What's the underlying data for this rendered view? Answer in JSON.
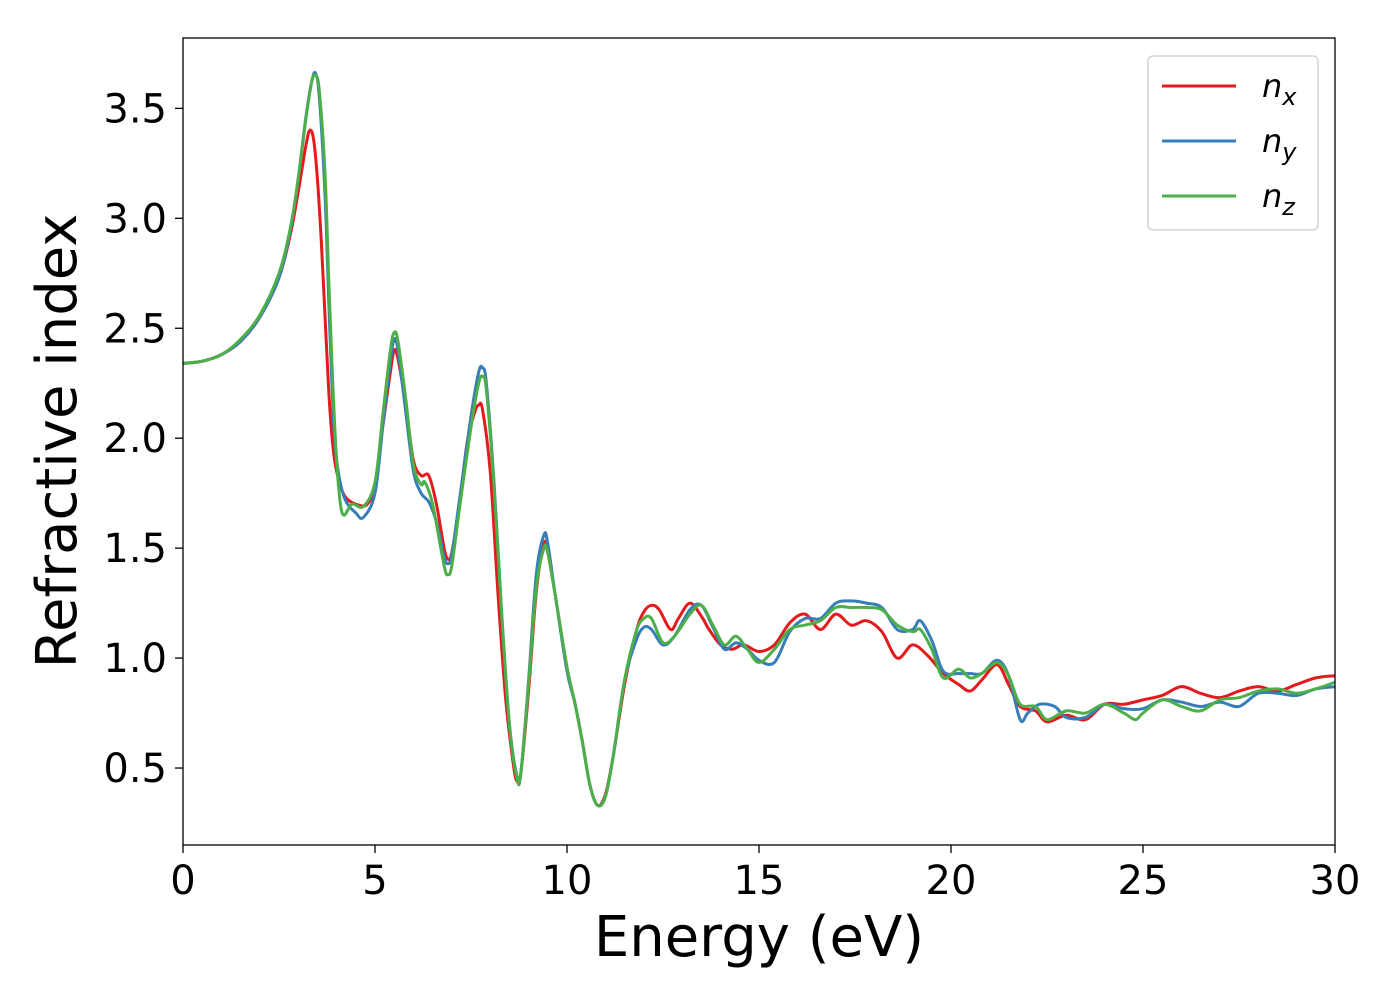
{
  "chart_data": {
    "type": "line",
    "title": "",
    "xlabel": "Energy (eV)",
    "ylabel": "Refractive index",
    "xlim": [
      0,
      30
    ],
    "ylim": [
      0.15,
      3.82
    ],
    "xticks": [
      0,
      5,
      10,
      15,
      20,
      25,
      30
    ],
    "yticks": [
      0.5,
      1.0,
      1.5,
      2.0,
      2.5,
      3.0,
      3.5
    ],
    "xtick_labels": [
      "0",
      "5",
      "10",
      "15",
      "20",
      "25",
      "30"
    ],
    "ytick_labels": [
      "0.5",
      "1.0",
      "1.5",
      "2.0",
      "2.5",
      "3.0",
      "3.5"
    ],
    "grid": false,
    "legend_position": "top-right",
    "series": [
      {
        "name": "n_x",
        "legend_base": "n",
        "legend_sub": "x",
        "color": "#e41a1c",
        "points": [
          [
            0,
            2.34
          ],
          [
            0.5,
            2.35
          ],
          [
            1,
            2.38
          ],
          [
            1.5,
            2.44
          ],
          [
            2,
            2.55
          ],
          [
            2.5,
            2.73
          ],
          [
            2.8,
            2.93
          ],
          [
            3.0,
            3.12
          ],
          [
            3.2,
            3.33
          ],
          [
            3.3,
            3.4
          ],
          [
            3.4,
            3.36
          ],
          [
            3.5,
            3.18
          ],
          [
            3.6,
            2.9
          ],
          [
            3.7,
            2.55
          ],
          [
            3.8,
            2.2
          ],
          [
            3.9,
            1.97
          ],
          [
            4.0,
            1.85
          ],
          [
            4.2,
            1.74
          ],
          [
            4.5,
            1.7
          ],
          [
            4.8,
            1.7
          ],
          [
            5.0,
            1.79
          ],
          [
            5.2,
            2.05
          ],
          [
            5.4,
            2.3
          ],
          [
            5.5,
            2.4
          ],
          [
            5.6,
            2.36
          ],
          [
            5.8,
            2.15
          ],
          [
            6.0,
            1.9
          ],
          [
            6.2,
            1.83
          ],
          [
            6.4,
            1.83
          ],
          [
            6.6,
            1.7
          ],
          [
            6.8,
            1.5
          ],
          [
            6.9,
            1.45
          ],
          [
            7.0,
            1.48
          ],
          [
            7.2,
            1.7
          ],
          [
            7.4,
            1.98
          ],
          [
            7.6,
            2.12
          ],
          [
            7.7,
            2.15
          ],
          [
            7.8,
            2.13
          ],
          [
            8.0,
            1.85
          ],
          [
            8.2,
            1.3
          ],
          [
            8.4,
            0.82
          ],
          [
            8.6,
            0.52
          ],
          [
            8.7,
            0.44
          ],
          [
            8.8,
            0.48
          ],
          [
            9.0,
            0.85
          ],
          [
            9.2,
            1.3
          ],
          [
            9.4,
            1.52
          ],
          [
            9.5,
            1.48
          ],
          [
            9.7,
            1.28
          ],
          [
            10.0,
            0.95
          ],
          [
            10.2,
            0.8
          ],
          [
            10.4,
            0.62
          ],
          [
            10.6,
            0.42
          ],
          [
            10.8,
            0.33
          ],
          [
            11.0,
            0.38
          ],
          [
            11.2,
            0.55
          ],
          [
            11.5,
            0.88
          ],
          [
            11.8,
            1.12
          ],
          [
            12.0,
            1.21
          ],
          [
            12.2,
            1.24
          ],
          [
            12.4,
            1.22
          ],
          [
            12.7,
            1.13
          ],
          [
            12.9,
            1.18
          ],
          [
            13.2,
            1.25
          ],
          [
            13.5,
            1.19
          ],
          [
            13.7,
            1.13
          ],
          [
            14.0,
            1.06
          ],
          [
            14.3,
            1.04
          ],
          [
            14.6,
            1.06
          ],
          [
            15.0,
            1.03
          ],
          [
            15.4,
            1.06
          ],
          [
            15.8,
            1.16
          ],
          [
            16.2,
            1.2
          ],
          [
            16.6,
            1.13
          ],
          [
            17.0,
            1.2
          ],
          [
            17.4,
            1.15
          ],
          [
            17.8,
            1.17
          ],
          [
            18.2,
            1.12
          ],
          [
            18.6,
            1.0
          ],
          [
            19.0,
            1.06
          ],
          [
            19.4,
            1.01
          ],
          [
            19.8,
            0.93
          ],
          [
            20.2,
            0.88
          ],
          [
            20.5,
            0.85
          ],
          [
            20.8,
            0.9
          ],
          [
            21.2,
            0.97
          ],
          [
            21.5,
            0.88
          ],
          [
            21.8,
            0.78
          ],
          [
            22.2,
            0.76
          ],
          [
            22.5,
            0.71
          ],
          [
            23.0,
            0.74
          ],
          [
            23.5,
            0.72
          ],
          [
            24.0,
            0.79
          ],
          [
            24.5,
            0.79
          ],
          [
            25.0,
            0.81
          ],
          [
            25.5,
            0.83
          ],
          [
            26.0,
            0.87
          ],
          [
            26.5,
            0.84
          ],
          [
            27.0,
            0.82
          ],
          [
            27.5,
            0.85
          ],
          [
            28.0,
            0.87
          ],
          [
            28.5,
            0.85
          ],
          [
            29.0,
            0.88
          ],
          [
            29.5,
            0.91
          ],
          [
            30.0,
            0.92
          ]
        ]
      },
      {
        "name": "n_y",
        "legend_base": "n",
        "legend_sub": "y",
        "color": "#377eb8",
        "points": [
          [
            0,
            2.34
          ],
          [
            0.5,
            2.35
          ],
          [
            1,
            2.38
          ],
          [
            1.5,
            2.44
          ],
          [
            2,
            2.55
          ],
          [
            2.5,
            2.73
          ],
          [
            2.8,
            2.95
          ],
          [
            3.0,
            3.18
          ],
          [
            3.2,
            3.46
          ],
          [
            3.35,
            3.62
          ],
          [
            3.45,
            3.66
          ],
          [
            3.55,
            3.55
          ],
          [
            3.7,
            3.1
          ],
          [
            3.8,
            2.6
          ],
          [
            3.9,
            2.15
          ],
          [
            4.0,
            1.9
          ],
          [
            4.2,
            1.73
          ],
          [
            4.5,
            1.66
          ],
          [
            4.7,
            1.64
          ],
          [
            5.0,
            1.75
          ],
          [
            5.2,
            2.05
          ],
          [
            5.4,
            2.35
          ],
          [
            5.5,
            2.45
          ],
          [
            5.6,
            2.4
          ],
          [
            5.8,
            2.12
          ],
          [
            6.0,
            1.85
          ],
          [
            6.2,
            1.75
          ],
          [
            6.4,
            1.71
          ],
          [
            6.6,
            1.62
          ],
          [
            6.8,
            1.46
          ],
          [
            6.9,
            1.43
          ],
          [
            7.0,
            1.47
          ],
          [
            7.2,
            1.72
          ],
          [
            7.5,
            2.1
          ],
          [
            7.7,
            2.3
          ],
          [
            7.8,
            2.32
          ],
          [
            7.9,
            2.25
          ],
          [
            8.1,
            1.8
          ],
          [
            8.3,
            1.2
          ],
          [
            8.5,
            0.7
          ],
          [
            8.7,
            0.46
          ],
          [
            8.8,
            0.48
          ],
          [
            9.0,
            0.9
          ],
          [
            9.2,
            1.38
          ],
          [
            9.4,
            1.56
          ],
          [
            9.5,
            1.52
          ],
          [
            9.7,
            1.28
          ],
          [
            10.0,
            0.94
          ],
          [
            10.2,
            0.8
          ],
          [
            10.4,
            0.62
          ],
          [
            10.6,
            0.42
          ],
          [
            10.8,
            0.33
          ],
          [
            11.0,
            0.37
          ],
          [
            11.2,
            0.55
          ],
          [
            11.5,
            0.9
          ],
          [
            11.8,
            1.08
          ],
          [
            12.0,
            1.14
          ],
          [
            12.2,
            1.13
          ],
          [
            12.5,
            1.06
          ],
          [
            12.8,
            1.1
          ],
          [
            13.2,
            1.22
          ],
          [
            13.5,
            1.24
          ],
          [
            13.8,
            1.14
          ],
          [
            14.1,
            1.04
          ],
          [
            14.4,
            1.07
          ],
          [
            14.7,
            1.04
          ],
          [
            15.0,
            0.99
          ],
          [
            15.4,
            0.98
          ],
          [
            15.8,
            1.12
          ],
          [
            16.2,
            1.18
          ],
          [
            16.6,
            1.18
          ],
          [
            17.0,
            1.25
          ],
          [
            17.4,
            1.26
          ],
          [
            17.8,
            1.25
          ],
          [
            18.2,
            1.23
          ],
          [
            18.6,
            1.13
          ],
          [
            19.0,
            1.13
          ],
          [
            19.2,
            1.17
          ],
          [
            19.5,
            1.08
          ],
          [
            19.8,
            0.94
          ],
          [
            20.2,
            0.93
          ],
          [
            20.5,
            0.93
          ],
          [
            20.8,
            0.93
          ],
          [
            21.2,
            0.99
          ],
          [
            21.5,
            0.92
          ],
          [
            21.8,
            0.72
          ],
          [
            22.0,
            0.75
          ],
          [
            22.3,
            0.79
          ],
          [
            22.7,
            0.78
          ],
          [
            23.0,
            0.73
          ],
          [
            23.5,
            0.73
          ],
          [
            24.0,
            0.79
          ],
          [
            24.5,
            0.77
          ],
          [
            25.0,
            0.77
          ],
          [
            25.5,
            0.81
          ],
          [
            26.0,
            0.8
          ],
          [
            26.5,
            0.78
          ],
          [
            27.0,
            0.8
          ],
          [
            27.5,
            0.78
          ],
          [
            28.0,
            0.84
          ],
          [
            28.5,
            0.84
          ],
          [
            29.0,
            0.83
          ],
          [
            29.5,
            0.86
          ],
          [
            30.0,
            0.87
          ]
        ]
      },
      {
        "name": "n_z",
        "legend_base": "n",
        "legend_sub": "z",
        "color": "#4daf4a",
        "points": [
          [
            0,
            2.34
          ],
          [
            0.5,
            2.35
          ],
          [
            1,
            2.38
          ],
          [
            1.5,
            2.45
          ],
          [
            2,
            2.56
          ],
          [
            2.5,
            2.75
          ],
          [
            2.8,
            2.96
          ],
          [
            3.0,
            3.18
          ],
          [
            3.2,
            3.45
          ],
          [
            3.35,
            3.62
          ],
          [
            3.45,
            3.65
          ],
          [
            3.55,
            3.58
          ],
          [
            3.7,
            3.2
          ],
          [
            3.8,
            2.7
          ],
          [
            3.9,
            2.25
          ],
          [
            4.0,
            1.9
          ],
          [
            4.1,
            1.7
          ],
          [
            4.2,
            1.65
          ],
          [
            4.4,
            1.7
          ],
          [
            4.7,
            1.69
          ],
          [
            5.0,
            1.8
          ],
          [
            5.2,
            2.1
          ],
          [
            5.4,
            2.4
          ],
          [
            5.5,
            2.48
          ],
          [
            5.6,
            2.44
          ],
          [
            5.8,
            2.18
          ],
          [
            6.0,
            1.88
          ],
          [
            6.2,
            1.79
          ],
          [
            6.3,
            1.8
          ],
          [
            6.5,
            1.7
          ],
          [
            6.8,
            1.42
          ],
          [
            6.9,
            1.38
          ],
          [
            7.0,
            1.42
          ],
          [
            7.2,
            1.68
          ],
          [
            7.5,
            2.05
          ],
          [
            7.7,
            2.25
          ],
          [
            7.8,
            2.28
          ],
          [
            7.9,
            2.22
          ],
          [
            8.1,
            1.78
          ],
          [
            8.3,
            1.2
          ],
          [
            8.5,
            0.7
          ],
          [
            8.7,
            0.45
          ],
          [
            8.8,
            0.48
          ],
          [
            9.0,
            0.88
          ],
          [
            9.2,
            1.32
          ],
          [
            9.4,
            1.5
          ],
          [
            9.5,
            1.48
          ],
          [
            9.7,
            1.28
          ],
          [
            10.0,
            0.96
          ],
          [
            10.2,
            0.8
          ],
          [
            10.4,
            0.62
          ],
          [
            10.6,
            0.42
          ],
          [
            10.8,
            0.33
          ],
          [
            11.0,
            0.37
          ],
          [
            11.2,
            0.55
          ],
          [
            11.5,
            0.9
          ],
          [
            11.8,
            1.12
          ],
          [
            12.0,
            1.18
          ],
          [
            12.2,
            1.18
          ],
          [
            12.5,
            1.07
          ],
          [
            12.8,
            1.1
          ],
          [
            13.2,
            1.2
          ],
          [
            13.5,
            1.24
          ],
          [
            13.8,
            1.15
          ],
          [
            14.1,
            1.06
          ],
          [
            14.4,
            1.1
          ],
          [
            14.7,
            1.04
          ],
          [
            15.0,
            0.98
          ],
          [
            15.4,
            1.04
          ],
          [
            15.8,
            1.13
          ],
          [
            16.2,
            1.15
          ],
          [
            16.6,
            1.17
          ],
          [
            17.0,
            1.23
          ],
          [
            17.4,
            1.23
          ],
          [
            17.8,
            1.23
          ],
          [
            18.2,
            1.22
          ],
          [
            18.6,
            1.15
          ],
          [
            19.0,
            1.12
          ],
          [
            19.2,
            1.13
          ],
          [
            19.5,
            1.04
          ],
          [
            19.8,
            0.91
          ],
          [
            20.2,
            0.95
          ],
          [
            20.5,
            0.91
          ],
          [
            20.8,
            0.93
          ],
          [
            21.2,
            0.98
          ],
          [
            21.5,
            0.92
          ],
          [
            21.8,
            0.79
          ],
          [
            22.2,
            0.78
          ],
          [
            22.5,
            0.72
          ],
          [
            23.0,
            0.76
          ],
          [
            23.5,
            0.75
          ],
          [
            24.0,
            0.79
          ],
          [
            24.5,
            0.75
          ],
          [
            24.8,
            0.72
          ],
          [
            25.0,
            0.75
          ],
          [
            25.5,
            0.81
          ],
          [
            26.0,
            0.78
          ],
          [
            26.5,
            0.76
          ],
          [
            27.0,
            0.81
          ],
          [
            27.5,
            0.82
          ],
          [
            28.0,
            0.85
          ],
          [
            28.5,
            0.86
          ],
          [
            29.0,
            0.84
          ],
          [
            29.5,
            0.86
          ],
          [
            30.0,
            0.89
          ]
        ]
      }
    ]
  }
}
